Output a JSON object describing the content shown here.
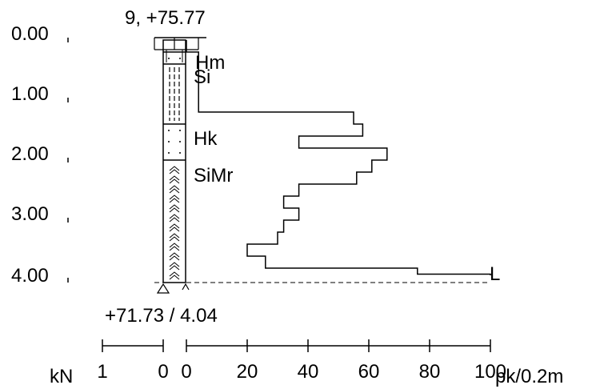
{
  "header": {
    "label": "9, +75.77"
  },
  "depth_axis": {
    "ticks": [
      "0.00",
      "1.00",
      "2.00",
      "3.00",
      "4.00"
    ]
  },
  "layers": [
    {
      "code": "Hm",
      "top": 0.2,
      "bottom": 0.4,
      "pattern": "dots"
    },
    {
      "code": "Si",
      "top": 0.4,
      "bottom": 1.4,
      "pattern": "dashes"
    },
    {
      "code": "Hk",
      "top": 1.4,
      "bottom": 2.0,
      "pattern": "dots"
    },
    {
      "code": "SiMr",
      "top": 2.0,
      "bottom": 4.04,
      "pattern": "arrows"
    }
  ],
  "penetration": {
    "unit": "pk/0.2m",
    "end_label": "L",
    "steps": [
      {
        "top": 0.0,
        "bottom": 0.2,
        "value": 0
      },
      {
        "top": 0.2,
        "bottom": 1.2,
        "value": 4
      },
      {
        "top": 1.2,
        "bottom": 1.4,
        "value": 55
      },
      {
        "top": 1.4,
        "bottom": 1.6,
        "value": 58
      },
      {
        "top": 1.6,
        "bottom": 1.8,
        "value": 37
      },
      {
        "top": 1.8,
        "bottom": 2.0,
        "value": 66
      },
      {
        "top": 2.0,
        "bottom": 2.2,
        "value": 61
      },
      {
        "top": 2.2,
        "bottom": 2.4,
        "value": 56
      },
      {
        "top": 2.4,
        "bottom": 2.6,
        "value": 37
      },
      {
        "top": 2.6,
        "bottom": 2.8,
        "value": 32
      },
      {
        "top": 2.8,
        "bottom": 3.0,
        "value": 37
      },
      {
        "top": 3.0,
        "bottom": 3.2,
        "value": 32
      },
      {
        "top": 3.2,
        "bottom": 3.4,
        "value": 30
      },
      {
        "top": 3.4,
        "bottom": 3.6,
        "value": 20
      },
      {
        "top": 3.6,
        "bottom": 3.8,
        "value": 26
      },
      {
        "top": 3.8,
        "bottom": 3.9,
        "value": 76
      },
      {
        "top": 3.9,
        "bottom": 3.92,
        "value": 100
      }
    ],
    "scale_ticks": [
      "0",
      "20",
      "40",
      "60",
      "80",
      "100"
    ]
  },
  "load_scale": {
    "unit": "kN",
    "ticks": [
      "1",
      "0"
    ]
  },
  "footer": {
    "label": "+71.73 / 4.04"
  }
}
